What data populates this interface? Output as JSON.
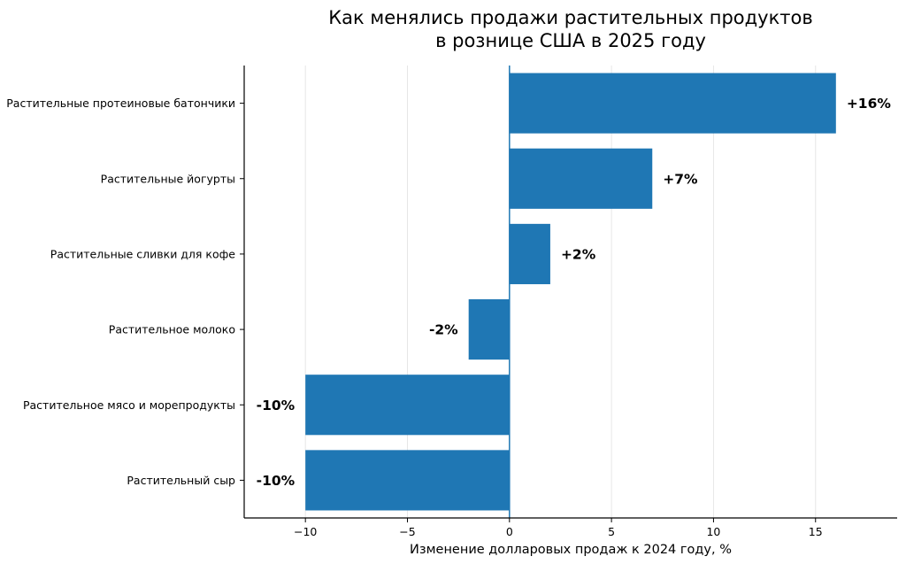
{
  "chart_data": {
    "type": "bar",
    "orientation": "horizontal",
    "title": [
      "Как менялись продажи растительных продуктов",
      "в рознице США в 2025 году"
    ],
    "xlabel": "Изменение долларовых продаж к 2024 году, %",
    "ylabel": "",
    "categories": [
      "Растительные протеиновые батончики",
      "Растительные йогурты",
      "Растительные сливки для кофе",
      "Растительное молоко",
      "Растительное мясо и морепродукты",
      "Растительный сыр"
    ],
    "values": [
      16,
      7,
      2,
      -2,
      -10,
      -10
    ],
    "data_labels": [
      "+16%",
      "+7%",
      "+2%",
      "-2%",
      "-10%",
      "-10%"
    ],
    "xlim": [
      -13,
      19
    ],
    "xticks": [
      -10,
      -5,
      0,
      5,
      10,
      15
    ],
    "xtick_labels": [
      "−10",
      "−5",
      "0",
      "5",
      "10",
      "15"
    ],
    "grid": "vertical",
    "bar_color": "#1f77b4",
    "zero_line_color": "#1f77b4",
    "grid_color": "#e6e6e6"
  }
}
